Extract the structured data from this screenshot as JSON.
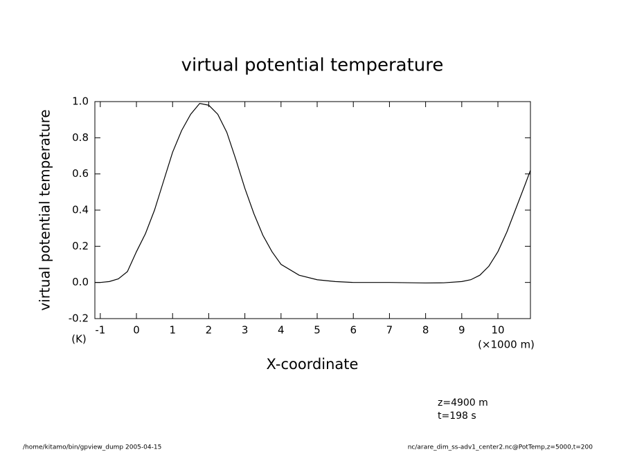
{
  "chart_data": {
    "type": "line",
    "title": "virtual potential temperature",
    "ylabel": "virtual potential temperature",
    "y_unit": "(K)",
    "xlabel": "X-coordinate",
    "x_unit": "(×1000 m)",
    "annotations": [
      "z=4900 m",
      "t=198 s"
    ],
    "footer_left": "/home/kitamo/bin/gpview_dump  2005-04-15",
    "footer_right": "nc/arare_dim_ss-adv1_center2.nc@PotTemp,z=5000,t=200",
    "x": [
      -1.15,
      -1,
      -0.75,
      -0.5,
      -0.25,
      0,
      0.25,
      0.5,
      0.75,
      1,
      1.25,
      1.5,
      1.75,
      2,
      2.25,
      2.5,
      2.75,
      3,
      3.25,
      3.5,
      3.75,
      4,
      4.5,
      5,
      5.5,
      6,
      7,
      8,
      8.5,
      9,
      9.25,
      9.5,
      9.75,
      10,
      10.25,
      10.5,
      10.75,
      10.9
    ],
    "series": [
      {
        "color": "#000000",
        "values": [
          0.0,
          0.0,
          0.005,
          0.02,
          0.06,
          0.17,
          0.27,
          0.4,
          0.56,
          0.72,
          0.84,
          0.93,
          0.99,
          0.98,
          0.93,
          0.83,
          0.68,
          0.52,
          0.38,
          0.26,
          0.17,
          0.1,
          0.04,
          0.015,
          0.005,
          0,
          0,
          -0.003,
          -0.002,
          0.005,
          0.015,
          0.04,
          0.09,
          0.17,
          0.28,
          0.41,
          0.54,
          0.62
        ]
      }
    ],
    "xlim": [
      -1.15,
      10.9
    ],
    "xticks": [
      -1,
      0,
      1,
      2,
      3,
      4,
      5,
      6,
      7,
      8,
      9,
      10
    ],
    "ylim": [
      -0.2,
      1.0
    ],
    "yticks": [
      -0.2,
      {
        "value": 0,
        "label": "0.0"
      },
      0.2,
      0.4,
      0.6,
      0.8,
      {
        "value": 1,
        "label": "1.0"
      }
    ]
  }
}
